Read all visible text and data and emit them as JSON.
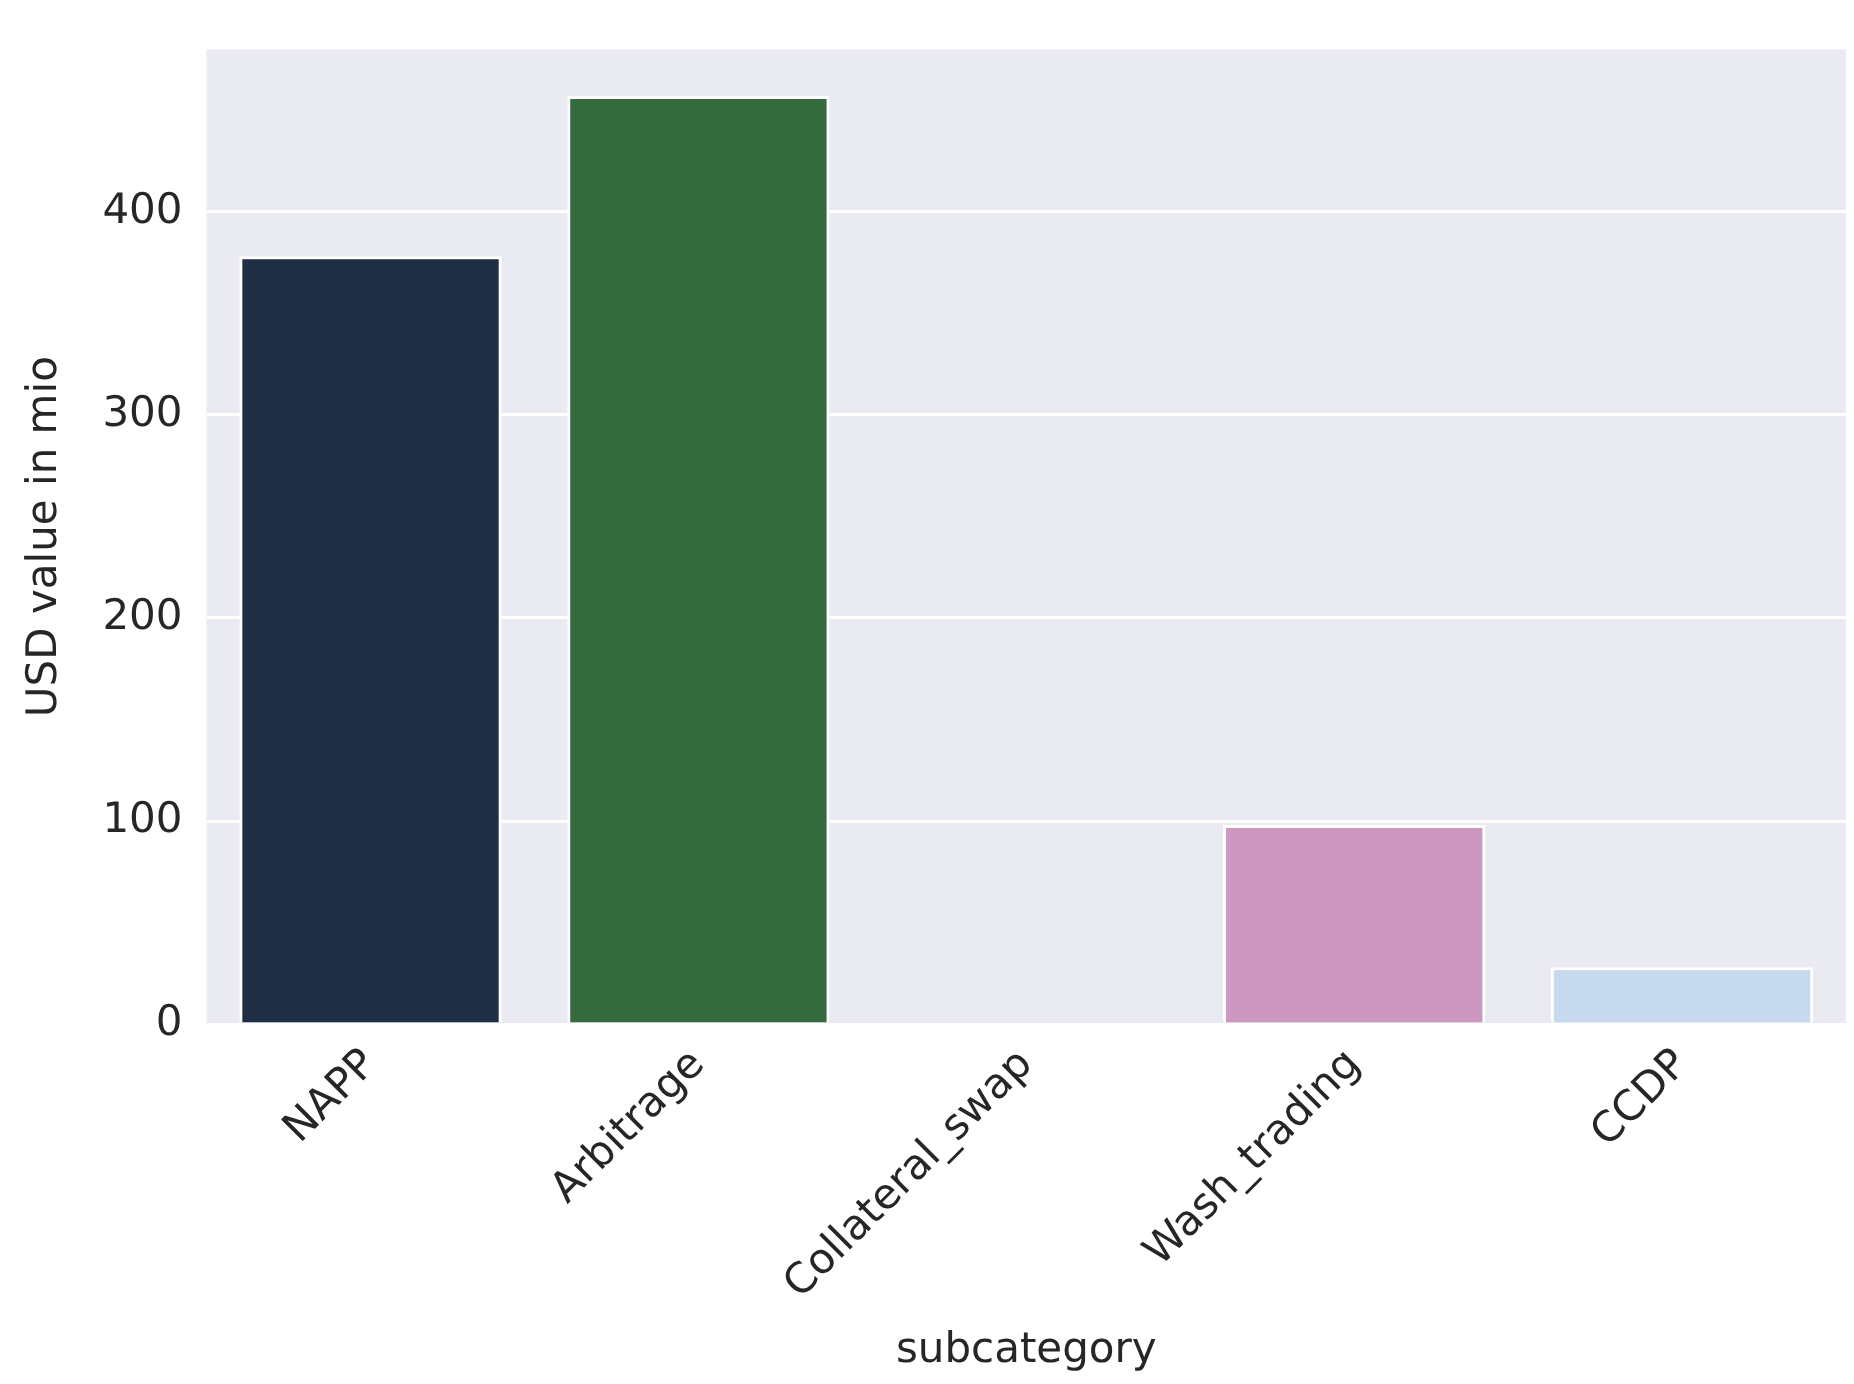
{
  "chart_data": {
    "type": "bar",
    "xlabel": "subcategory",
    "ylabel": "USD value in mio",
    "categories": [
      "NAPP",
      "Arbitrage",
      "Collateral_swap",
      "Wash_trading",
      "CCDP"
    ],
    "values": [
      378,
      457,
      0,
      98,
      28
    ],
    "colors": [
      "#1f2d45",
      "#356a3f",
      "#8a6f9e",
      "#cc97c1",
      "#c6d9ee"
    ],
    "ylim": [
      0,
      480
    ],
    "yticks": [
      0,
      100,
      200,
      300,
      400
    ],
    "grid": "y"
  }
}
